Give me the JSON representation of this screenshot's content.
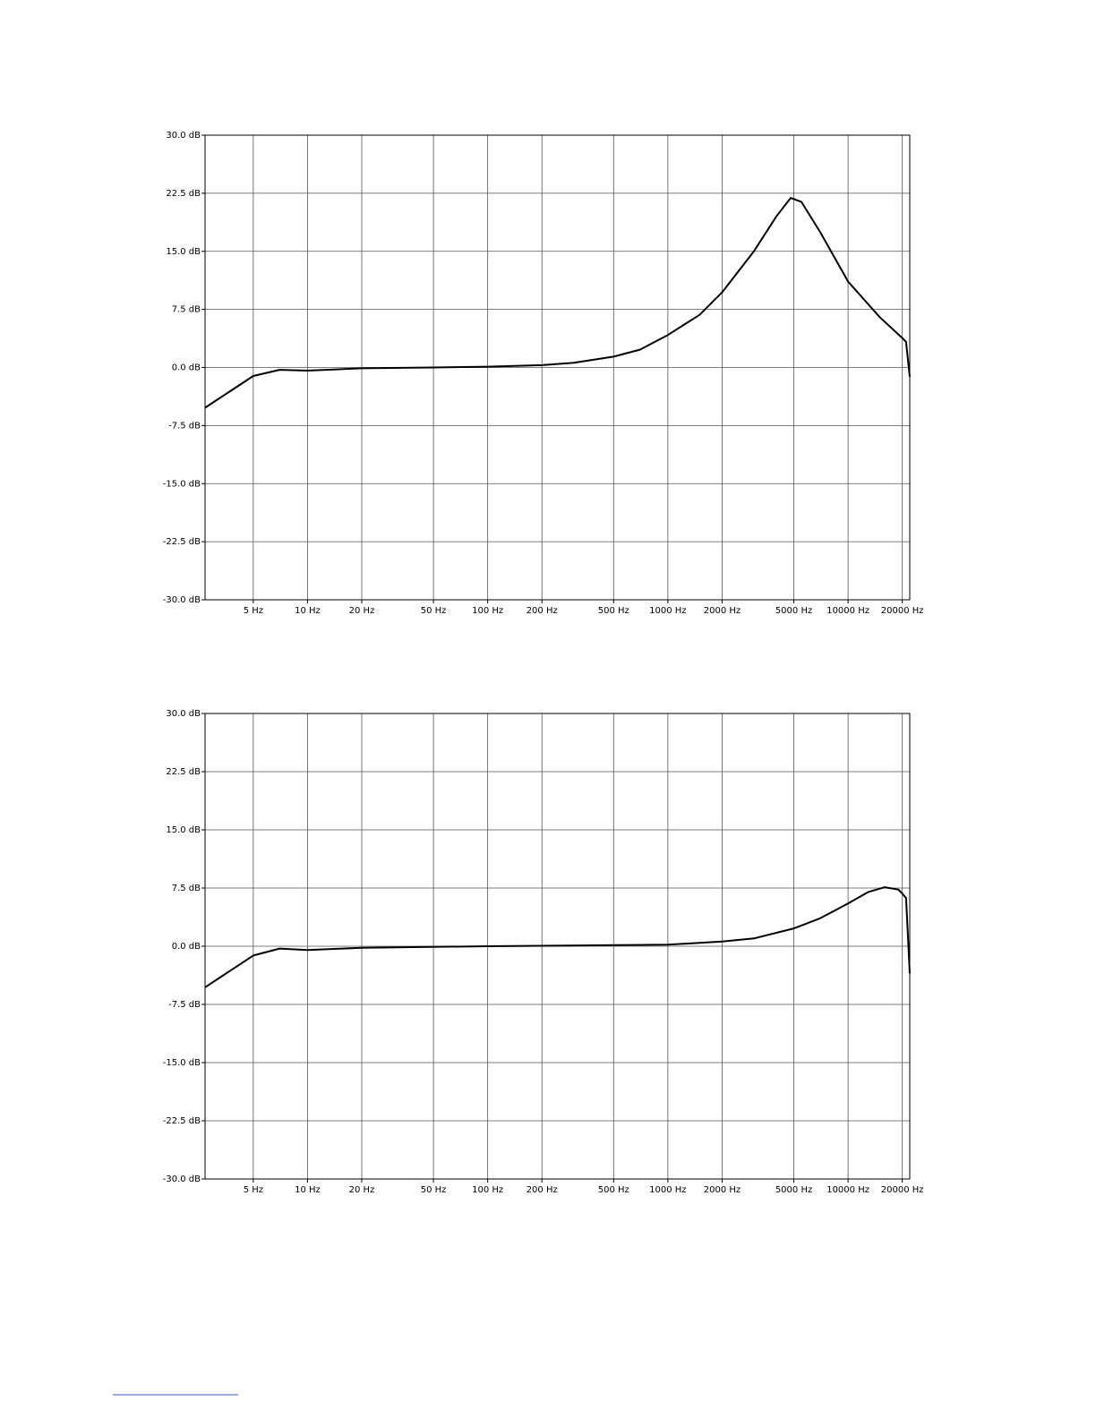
{
  "chart_data": [
    {
      "type": "line",
      "xscale": "log",
      "grid": true,
      "xlim": [
        2.7,
        22000
      ],
      "ylim": [
        -30,
        30
      ],
      "xticks": [
        {
          "value": 5,
          "label": "5 Hz"
        },
        {
          "value": 10,
          "label": "10 Hz"
        },
        {
          "value": 20,
          "label": "20 Hz"
        },
        {
          "value": 50,
          "label": "50 Hz"
        },
        {
          "value": 100,
          "label": "100 Hz"
        },
        {
          "value": 200,
          "label": "200 Hz"
        },
        {
          "value": 500,
          "label": "500 Hz"
        },
        {
          "value": 1000,
          "label": "1000 Hz"
        },
        {
          "value": 2000,
          "label": "2000 Hz"
        },
        {
          "value": 5000,
          "label": "5000 Hz"
        },
        {
          "value": 10000,
          "label": "10000 Hz"
        },
        {
          "value": 20000,
          "label": "20000 Hz"
        }
      ],
      "yticks": [
        {
          "value": 30,
          "label": "30.0 dB"
        },
        {
          "value": 22.5,
          "label": "22.5 dB"
        },
        {
          "value": 15,
          "label": "15.0 dB"
        },
        {
          "value": 7.5,
          "label": "7.5 dB"
        },
        {
          "value": 0,
          "label": "0.0 dB"
        },
        {
          "value": -7.5,
          "label": "-7.5 dB"
        },
        {
          "value": -15,
          "label": "-15.0 dB"
        },
        {
          "value": -22.5,
          "label": "-22.5 dB"
        },
        {
          "value": -30,
          "label": "-30.0 dB"
        }
      ],
      "x": [
        2.7,
        5,
        7,
        10,
        20,
        50,
        100,
        200,
        300,
        500,
        700,
        1000,
        1500,
        2000,
        3000,
        4000,
        4800,
        5500,
        7000,
        10000,
        15000,
        20000,
        21000,
        22000
      ],
      "color": "#000000",
      "values": [
        -5.2,
        -1.1,
        -0.3,
        -0.4,
        -0.1,
        0,
        0.1,
        0.3,
        0.6,
        1.4,
        2.3,
        4.2,
        6.8,
        9.7,
        15,
        19.5,
        21.9,
        21.4,
        17.5,
        11.1,
        6.5,
        3.8,
        3.3,
        -1.2
      ]
    },
    {
      "type": "line",
      "xscale": "log",
      "grid": true,
      "xlim": [
        2.7,
        22000
      ],
      "ylim": [
        -30,
        30
      ],
      "xticks": [
        {
          "value": 5,
          "label": "5 Hz"
        },
        {
          "value": 10,
          "label": "10 Hz"
        },
        {
          "value": 20,
          "label": "20 Hz"
        },
        {
          "value": 50,
          "label": "50 Hz"
        },
        {
          "value": 100,
          "label": "100 Hz"
        },
        {
          "value": 200,
          "label": "200 Hz"
        },
        {
          "value": 500,
          "label": "500 Hz"
        },
        {
          "value": 1000,
          "label": "1000 Hz"
        },
        {
          "value": 2000,
          "label": "2000 Hz"
        },
        {
          "value": 5000,
          "label": "5000 Hz"
        },
        {
          "value": 10000,
          "label": "10000 Hz"
        },
        {
          "value": 20000,
          "label": "20000 Hz"
        }
      ],
      "yticks": [
        {
          "value": 30,
          "label": "30.0 dB"
        },
        {
          "value": 22.5,
          "label": "22.5 dB"
        },
        {
          "value": 15,
          "label": "15.0 dB"
        },
        {
          "value": 7.5,
          "label": "7.5 dB"
        },
        {
          "value": 0,
          "label": "0.0 dB"
        },
        {
          "value": -7.5,
          "label": "-7.5 dB"
        },
        {
          "value": -15,
          "label": "-15.0 dB"
        },
        {
          "value": -22.5,
          "label": "-22.5 dB"
        },
        {
          "value": -30,
          "label": "-30.0 dB"
        }
      ],
      "x": [
        2.7,
        5,
        7,
        10,
        20,
        100,
        1000,
        2000,
        3000,
        5000,
        7000,
        10000,
        13000,
        16000,
        19000,
        20000,
        21000,
        22000
      ],
      "color": "#000000",
      "values": [
        -5.3,
        -1.2,
        -0.3,
        -0.5,
        -0.2,
        0,
        0.2,
        0.6,
        1.0,
        2.3,
        3.6,
        5.5,
        7.0,
        7.6,
        7.3,
        6.8,
        6.2,
        -3.5
      ]
    }
  ]
}
